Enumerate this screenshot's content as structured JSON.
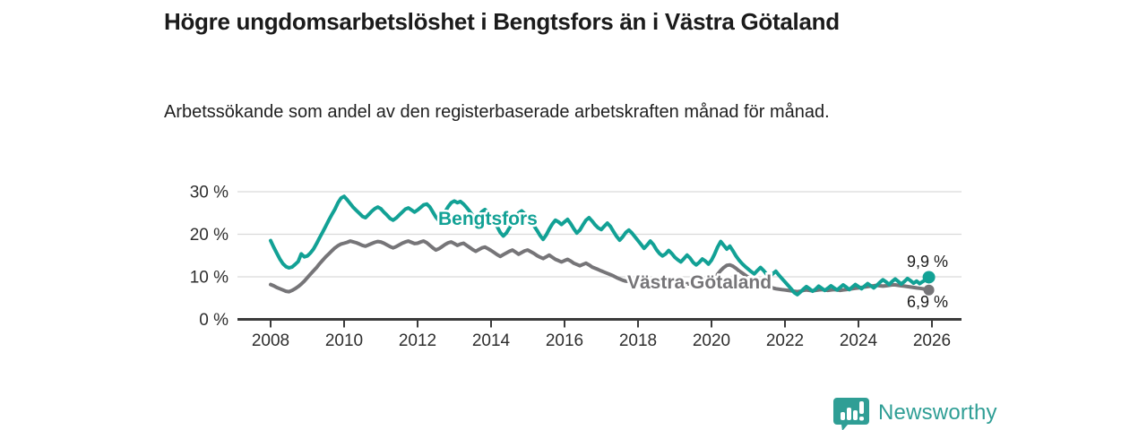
{
  "header": {
    "title": "Högre ungdomsarbetslöshet i Bengtsfors än i Västra Götaland",
    "subtitle": "Arbetssökande som andel av den registerbaserade arbetskraften månad för månad."
  },
  "footer": {
    "brand": "Newsworthy",
    "logo_icon": "newsworthy-chart-bubble-icon"
  },
  "colors": {
    "bengtsfors_teal": "#12a195",
    "vastra_gray": "#767578",
    "grid": "#dadada",
    "axis": "#3b3b3b",
    "text_dark": "#1b1b1b",
    "tick_text": "#2e2e2e",
    "brand_teal": "#2f9e95"
  },
  "chart_data": {
    "type": "line",
    "x_unit": "month",
    "x_start_year": 2008,
    "x_tick_labels": [
      "2008",
      "2010",
      "2012",
      "2014",
      "2016",
      "2018",
      "2020",
      "2022",
      "2024",
      "2026"
    ],
    "y_tick_labels": [
      "0 %",
      "10 %",
      "20 %",
      "30 %"
    ],
    "y_tick_values": [
      0,
      10,
      20,
      30
    ],
    "ylim": [
      0,
      32
    ],
    "grid": "horizontal",
    "legend_position": "inline-labels",
    "series": [
      {
        "name": "Bengtsfors",
        "color": "#12a195",
        "end_label": "9,9 %",
        "end_value": 9.9,
        "values": [
          18.5,
          17.0,
          15.6,
          14.2,
          13.1,
          12.4,
          12.1,
          12.3,
          12.9,
          13.6,
          15.4,
          14.7,
          14.9,
          15.6,
          16.5,
          17.8,
          19.2,
          20.5,
          21.9,
          23.3,
          24.6,
          25.9,
          27.4,
          28.5,
          28.9,
          28.1,
          27.2,
          26.3,
          25.6,
          24.9,
          24.2,
          23.9,
          24.6,
          25.4,
          26.0,
          26.4,
          26.0,
          25.2,
          24.5,
          23.7,
          23.3,
          23.8,
          24.5,
          25.2,
          25.9,
          26.2,
          25.7,
          25.2,
          25.7,
          26.3,
          26.9,
          27.1,
          26.4,
          25.2,
          24.0,
          23.2,
          24.0,
          25.3,
          26.5,
          27.4,
          27.8,
          27.4,
          27.7,
          27.1,
          26.3,
          25.4,
          24.4,
          23.7,
          24.4,
          25.3,
          25.8,
          25.1,
          24.4,
          23.2,
          21.8,
          20.4,
          19.6,
          20.3,
          21.5,
          22.7,
          23.9,
          25.0,
          25.5,
          24.8,
          24.0,
          23.1,
          22.0,
          20.9,
          19.7,
          18.8,
          19.8,
          21.2,
          22.4,
          23.3,
          22.9,
          22.3,
          22.9,
          23.5,
          22.5,
          21.3,
          20.3,
          21.0,
          22.2,
          23.3,
          23.9,
          23.1,
          22.2,
          21.5,
          21.1,
          21.9,
          22.6,
          21.8,
          20.6,
          19.5,
          18.6,
          19.4,
          20.4,
          21.0,
          20.3,
          19.4,
          18.5,
          17.6,
          16.7,
          17.5,
          18.4,
          17.6,
          16.4,
          15.5,
          14.9,
          15.4,
          16.2,
          15.5,
          14.6,
          14.0,
          13.5,
          14.3,
          15.1,
          14.4,
          13.4,
          12.8,
          13.4,
          14.2,
          13.7,
          13.0,
          13.9,
          15.3,
          17.0,
          18.3,
          17.4,
          16.5,
          17.2,
          16.1,
          14.9,
          13.9,
          13.1,
          12.4,
          11.8,
          11.2,
          10.7,
          11.5,
          12.2,
          11.5,
          10.6,
          10.0,
          10.7,
          11.3,
          10.4,
          9.6,
          8.8,
          8.0,
          7.2,
          6.3,
          5.8,
          6.4,
          7.1,
          7.7,
          7.2,
          6.6,
          7.1,
          7.8,
          7.3,
          6.8,
          7.3,
          7.9,
          7.4,
          6.9,
          7.5,
          8.1,
          7.6,
          7.0,
          7.6,
          8.2,
          7.7,
          7.2,
          7.8,
          8.4,
          7.9,
          7.4,
          8.0,
          8.7,
          9.3,
          8.8,
          8.2,
          8.9,
          9.5,
          8.9,
          8.3,
          8.9,
          9.6,
          9.1,
          8.5,
          9.0,
          8.4,
          8.9,
          9.3,
          9.9
        ]
      },
      {
        "name": "Västra Götaland",
        "color": "#767578",
        "end_label": "6,9 %",
        "end_value": 6.9,
        "values": [
          8.2,
          7.9,
          7.5,
          7.2,
          6.9,
          6.6,
          6.5,
          6.8,
          7.2,
          7.7,
          8.3,
          9.0,
          9.8,
          10.6,
          11.4,
          12.2,
          13.1,
          13.9,
          14.7,
          15.4,
          16.1,
          16.8,
          17.3,
          17.7,
          17.9,
          18.1,
          18.4,
          18.2,
          18.0,
          17.7,
          17.4,
          17.2,
          17.5,
          17.8,
          18.1,
          18.3,
          18.2,
          17.9,
          17.5,
          17.1,
          16.8,
          17.1,
          17.5,
          17.9,
          18.2,
          18.4,
          18.1,
          17.8,
          17.9,
          18.2,
          18.4,
          18.0,
          17.4,
          16.8,
          16.3,
          16.6,
          17.1,
          17.6,
          18.0,
          18.2,
          17.8,
          17.4,
          17.7,
          17.9,
          17.4,
          16.9,
          16.4,
          16.0,
          16.4,
          16.8,
          17.0,
          16.6,
          16.2,
          15.7,
          15.2,
          14.8,
          15.2,
          15.6,
          16.0,
          16.3,
          15.8,
          15.3,
          15.7,
          16.1,
          16.3,
          15.9,
          15.5,
          15.0,
          14.6,
          14.3,
          14.7,
          15.1,
          14.6,
          14.1,
          13.8,
          13.5,
          13.8,
          14.1,
          13.7,
          13.2,
          12.9,
          12.6,
          12.9,
          13.2,
          12.8,
          12.3,
          12.0,
          11.7,
          11.4,
          11.1,
          10.8,
          10.5,
          10.2,
          9.8,
          9.5,
          9.2,
          9.0,
          8.9,
          8.8,
          8.7,
          8.6,
          8.5,
          8.4,
          8.6,
          8.8,
          8.6,
          8.4,
          8.2,
          8.1,
          8.3,
          8.5,
          8.4,
          8.2,
          8.1,
          8.0,
          8.2,
          8.4,
          8.3,
          8.1,
          8.0,
          8.2,
          8.4,
          8.6,
          8.8,
          9.1,
          9.7,
          10.6,
          11.5,
          12.2,
          12.7,
          12.8,
          12.5,
          12.0,
          11.4,
          10.9,
          10.4,
          9.9,
          9.5,
          9.1,
          8.8,
          8.5,
          8.2,
          7.9,
          7.6,
          7.4,
          7.2,
          7.1,
          7.0,
          6.9,
          6.8,
          6.7,
          6.6,
          6.5,
          6.6,
          6.8,
          6.9,
          6.8,
          6.7,
          6.8,
          6.9,
          7.0,
          6.9,
          6.8,
          6.9,
          7.0,
          6.9,
          6.8,
          6.9,
          7.0,
          7.1,
          7.2,
          7.3,
          7.4,
          7.5,
          7.6,
          7.7,
          7.8,
          7.9,
          8.0,
          7.9,
          7.8,
          7.9,
          8.0,
          8.1,
          8.1,
          8.0,
          7.9,
          7.8,
          7.7,
          7.6,
          7.5,
          7.4,
          7.3,
          7.2,
          7.0,
          6.9
        ]
      }
    ]
  }
}
